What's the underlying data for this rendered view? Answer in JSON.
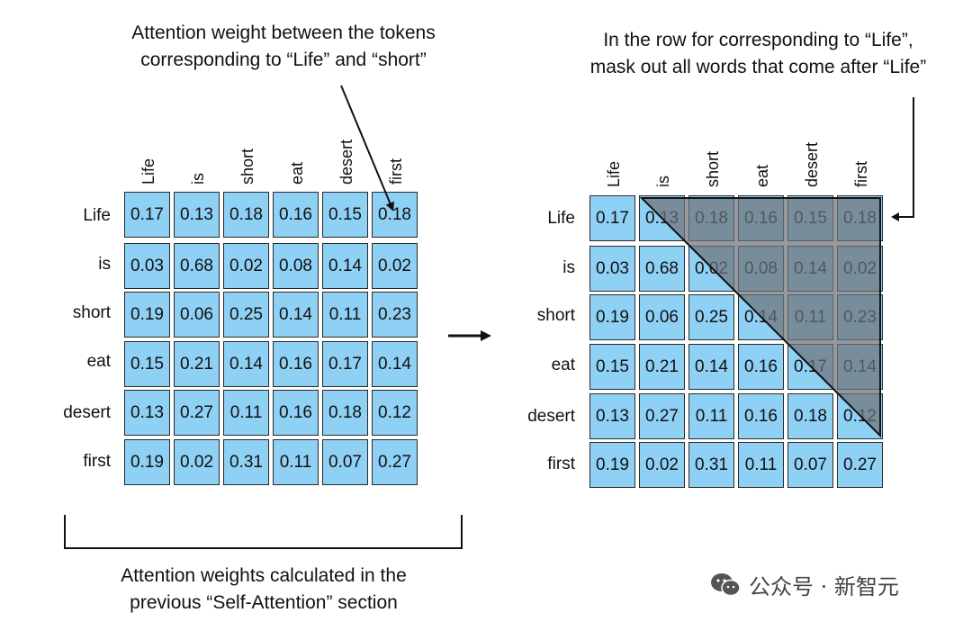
{
  "left_annotation": {
    "line1": "Attention weight between the tokens",
    "line2": "corresponding to “Life” and “short”"
  },
  "right_annotation": {
    "line1": "In the row for corresponding to “Life”,",
    "line2": "mask out all words that come after “Life”"
  },
  "bottom_caption": {
    "line1": "Attention weights calculated in the",
    "line2": "previous “Self-Attention” section"
  },
  "watermark": "公众号 · 新智元",
  "tokens": [
    "Life",
    "is",
    "short",
    "eat",
    "desert",
    "first"
  ],
  "weights": [
    [
      "0.17",
      "0.13",
      "0.18",
      "0.16",
      "0.15",
      "0.18"
    ],
    [
      "0.03",
      "0.68",
      "0.02",
      "0.08",
      "0.14",
      "0.02"
    ],
    [
      "0.19",
      "0.06",
      "0.25",
      "0.14",
      "0.11",
      "0.23"
    ],
    [
      "0.15",
      "0.21",
      "0.14",
      "0.16",
      "0.17",
      "0.14"
    ],
    [
      "0.13",
      "0.27",
      "0.11",
      "0.16",
      "0.18",
      "0.12"
    ],
    [
      "0.19",
      "0.02",
      "0.31",
      "0.11",
      "0.07",
      "0.27"
    ]
  ],
  "colors": {
    "cell_fill": "#8fd0f5",
    "mask_fill": "#6e7378",
    "border": "#2a2a2a"
  },
  "icons": [
    "wechat-icon",
    "arrow-right-icon"
  ]
}
